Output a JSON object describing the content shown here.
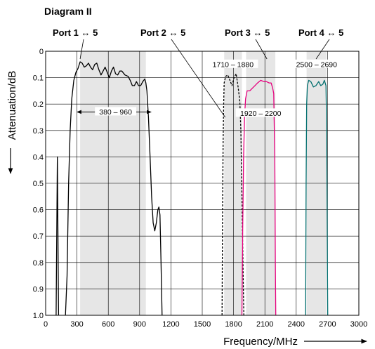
{
  "chart_data": {
    "type": "line",
    "title": "Diagram II",
    "xlabel": "Frequency/MHz",
    "ylabel": "Attenuation/dB",
    "xlim": [
      0,
      3000
    ],
    "ylim": [
      0,
      1.0
    ],
    "y_inverted": true,
    "grid": true,
    "x_ticks": [
      "0",
      "300",
      "600",
      "900",
      "1200",
      "1500",
      "1800",
      "2100",
      "2400",
      "2700",
      "3000"
    ],
    "y_ticks": [
      "0",
      "0.1",
      "0.2",
      "0.3",
      "0.4",
      "0.5",
      "0.6",
      "0.7",
      "0.8",
      "0.9",
      "1.0"
    ],
    "port_labels": [
      {
        "text": "Port 1 ↔ 5",
        "pointer_x": 330
      },
      {
        "text": "Port 2 ↔ 5",
        "pointer_x": 1720
      },
      {
        "text": "Port 3 ↔ 5",
        "pointer_x": 2120
      },
      {
        "text": "Port 4 ↔ 5",
        "pointer_x": 2590
      }
    ],
    "bands": [
      {
        "label": "380 – 960",
        "from": 380,
        "to": 960,
        "marker_y": 0.23,
        "shade_from": 330,
        "shade_to": 960,
        "bar_from": 300,
        "bar_to": 1010
      },
      {
        "label": "1710 – 1880",
        "from": 1710,
        "to": 1880,
        "marker_y": 0.05,
        "shade_from": 1710,
        "shade_to": 1880
      },
      {
        "label": "1920 – 2200",
        "from": 1920,
        "to": 2200,
        "marker_y": 0.235,
        "shade_from": 1920,
        "shade_to": 2200
      },
      {
        "label": "2500 – 2690",
        "from": 2500,
        "to": 2690,
        "marker_y": 0.05,
        "shade_from": 2500,
        "shade_to": 2690
      }
    ],
    "series": [
      {
        "color": "#000000",
        "dash": false,
        "segments": [
          [
            [
              100,
              1.0
            ],
            [
              112,
              0.4
            ],
            [
              124,
              1.0
            ]
          ],
          [
            [
              190,
              1.0
            ],
            [
              205,
              0.85
            ],
            [
              220,
              0.5
            ],
            [
              235,
              0.3
            ],
            [
              250,
              0.18
            ],
            [
              270,
              0.11
            ],
            [
              290,
              0.08
            ],
            [
              310,
              0.065
            ],
            [
              330,
              0.04
            ],
            [
              350,
              0.045
            ],
            [
              370,
              0.06
            ],
            [
              390,
              0.055
            ],
            [
              410,
              0.045
            ],
            [
              430,
              0.06
            ],
            [
              450,
              0.07
            ],
            [
              470,
              0.05
            ],
            [
              490,
              0.045
            ],
            [
              510,
              0.07
            ],
            [
              530,
              0.09
            ],
            [
              550,
              0.075
            ],
            [
              570,
              0.06
            ],
            [
              590,
              0.08
            ],
            [
              610,
              0.1
            ],
            [
              630,
              0.075
            ],
            [
              650,
              0.06
            ],
            [
              670,
              0.085
            ],
            [
              690,
              0.09
            ],
            [
              710,
              0.075
            ],
            [
              730,
              0.075
            ],
            [
              760,
              0.09
            ],
            [
              790,
              0.095
            ],
            [
              810,
              0.11
            ],
            [
              830,
              0.13
            ],
            [
              850,
              0.13
            ],
            [
              870,
              0.115
            ],
            [
              890,
              0.13
            ],
            [
              910,
              0.13
            ],
            [
              930,
              0.115
            ],
            [
              950,
              0.105
            ],
            [
              960,
              0.12
            ],
            [
              970,
              0.15
            ],
            [
              985,
              0.25
            ],
            [
              1000,
              0.4
            ],
            [
              1015,
              0.55
            ],
            [
              1030,
              0.65
            ],
            [
              1045,
              0.68
            ],
            [
              1060,
              0.65
            ],
            [
              1075,
              0.6
            ],
            [
              1085,
              0.59
            ],
            [
              1095,
              0.62
            ],
            [
              1105,
              0.8
            ],
            [
              1115,
              1.0
            ]
          ]
        ]
      },
      {
        "color": "#000000",
        "dash": true,
        "segments": [
          [
            [
              1690,
              1.0
            ],
            [
              1695,
              0.6
            ],
            [
              1700,
              0.35
            ],
            [
              1705,
              0.2
            ],
            [
              1710,
              0.12
            ],
            [
              1725,
              0.095
            ],
            [
              1745,
              0.09
            ],
            [
              1765,
              0.11
            ],
            [
              1785,
              0.13
            ],
            [
              1805,
              0.1
            ],
            [
              1825,
              0.085
            ],
            [
              1845,
              0.14
            ],
            [
              1860,
              0.19
            ],
            [
              1870,
              0.3
            ],
            [
              1880,
              0.55
            ],
            [
              1890,
              0.8
            ],
            [
              1898,
              1.0
            ]
          ]
        ]
      },
      {
        "color": "#e6007e",
        "dash": false,
        "segments": [
          [
            [
              1880,
              1.0
            ],
            [
              1888,
              0.65
            ],
            [
              1896,
              0.4
            ],
            [
              1905,
              0.25
            ],
            [
              1915,
              0.18
            ],
            [
              1930,
              0.15
            ],
            [
              1955,
              0.15
            ],
            [
              1980,
              0.14
            ],
            [
              2005,
              0.13
            ],
            [
              2030,
              0.12
            ],
            [
              2060,
              0.11
            ],
            [
              2090,
              0.115
            ],
            [
              2115,
              0.115
            ],
            [
              2140,
              0.12
            ],
            [
              2160,
              0.12
            ],
            [
              2175,
              0.14
            ],
            [
              2185,
              0.16
            ],
            [
              2195,
              0.4
            ],
            [
              2200,
              0.8
            ],
            [
              2204,
              1.0
            ]
          ]
        ]
      },
      {
        "color": "#006e6e",
        "dash": false,
        "segments": [
          [
            [
              2490,
              1.0
            ],
            [
              2495,
              0.5
            ],
            [
              2500,
              0.2
            ],
            [
              2507,
              0.13
            ],
            [
              2520,
              0.11
            ],
            [
              2540,
              0.115
            ],
            [
              2565,
              0.135
            ],
            [
              2590,
              0.13
            ],
            [
              2615,
              0.115
            ],
            [
              2635,
              0.13
            ],
            [
              2655,
              0.125
            ],
            [
              2670,
              0.11
            ],
            [
              2685,
              0.13
            ],
            [
              2692,
              0.3
            ],
            [
              2697,
              0.7
            ],
            [
              2702,
              1.0
            ]
          ]
        ]
      }
    ]
  }
}
